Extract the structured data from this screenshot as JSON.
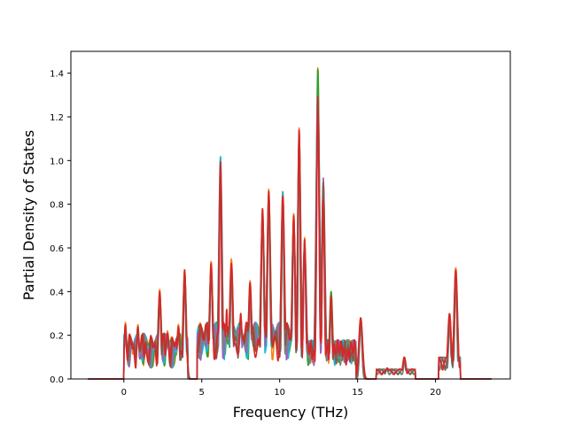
{
  "chart_data": {
    "type": "line",
    "title": "",
    "xlabel": "Frequency (THz)",
    "ylabel": "Partial Density of States",
    "xlim": [
      -3.4,
      24.8
    ],
    "ylim": [
      0.0,
      1.5
    ],
    "xticks": [
      0,
      5,
      10,
      15,
      20
    ],
    "yticks": [
      0.0,
      0.2,
      0.4,
      0.6,
      0.8,
      1.0,
      1.2,
      1.4
    ],
    "grid": false,
    "legend": "none",
    "x_range_plotted": [
      -2.3,
      23.6
    ],
    "series": [
      {
        "color": "#ff7f0e",
        "variant": 0,
        "peaks": [
          [
            0.1,
            0.26
          ],
          [
            0.5,
            0.18
          ],
          [
            0.9,
            0.25
          ],
          [
            1.4,
            0.18
          ],
          [
            2.3,
            0.41
          ],
          [
            2.8,
            0.22
          ],
          [
            3.5,
            0.25
          ],
          [
            3.9,
            0.5
          ],
          [
            5.6,
            0.54
          ],
          [
            6.2,
            1.02
          ],
          [
            6.6,
            0.3
          ],
          [
            6.9,
            0.55
          ],
          [
            7.5,
            0.3
          ],
          [
            8.1,
            0.45
          ],
          [
            8.9,
            0.78
          ],
          [
            9.3,
            0.87
          ],
          [
            10.2,
            0.86
          ],
          [
            10.9,
            0.76
          ],
          [
            11.25,
            1.15
          ],
          [
            11.6,
            0.65
          ],
          [
            12.45,
            1.43
          ],
          [
            12.8,
            0.92
          ],
          [
            13.3,
            0.4
          ],
          [
            15.2,
            0.28
          ],
          [
            16.9,
            0.05
          ],
          [
            18,
            0.1
          ],
          [
            20.9,
            0.3
          ],
          [
            21.3,
            0.51
          ]
        ]
      },
      {
        "color": "#2ca02c",
        "variant": 1,
        "peaks": [
          [
            0.1,
            0.24
          ],
          [
            0.5,
            0.16
          ],
          [
            0.9,
            0.24
          ],
          [
            1.4,
            0.16
          ],
          [
            2.3,
            0.38
          ],
          [
            2.8,
            0.2
          ],
          [
            3.5,
            0.22
          ],
          [
            3.9,
            0.48
          ],
          [
            5.6,
            0.5
          ],
          [
            6.2,
            0.98
          ],
          [
            6.6,
            0.2
          ],
          [
            6.9,
            0.52
          ],
          [
            7.5,
            0.22
          ],
          [
            8.1,
            0.42
          ],
          [
            8.9,
            0.74
          ],
          [
            9.3,
            0.84
          ],
          [
            10.2,
            0.8
          ],
          [
            10.9,
            0.72
          ],
          [
            11.25,
            1.12
          ],
          [
            11.6,
            0.6
          ],
          [
            12.45,
            1.42
          ],
          [
            12.8,
            0.85
          ],
          [
            13.3,
            0.4
          ],
          [
            15.2,
            0.27
          ],
          [
            16.9,
            0.04
          ],
          [
            18,
            0.09
          ],
          [
            20.9,
            0.28
          ],
          [
            21.3,
            0.49
          ]
        ]
      },
      {
        "color": "#17becf",
        "variant": 2,
        "peaks": [
          [
            0.1,
            0.22
          ],
          [
            0.5,
            0.15
          ],
          [
            0.9,
            0.22
          ],
          [
            1.4,
            0.15
          ],
          [
            2.3,
            0.36
          ],
          [
            2.8,
            0.19
          ],
          [
            3.5,
            0.22
          ],
          [
            3.9,
            0.47
          ],
          [
            5.6,
            0.5
          ],
          [
            6.2,
            1.02
          ],
          [
            6.6,
            0.25
          ],
          [
            6.9,
            0.5
          ],
          [
            7.5,
            0.25
          ],
          [
            8.1,
            0.42
          ],
          [
            8.9,
            0.76
          ],
          [
            9.3,
            0.82
          ],
          [
            10.2,
            0.86
          ],
          [
            10.9,
            0.74
          ],
          [
            11.25,
            1.12
          ],
          [
            11.6,
            0.6
          ],
          [
            12.45,
            1.3
          ],
          [
            12.8,
            0.88
          ],
          [
            13.3,
            0.36
          ],
          [
            15.2,
            0.26
          ],
          [
            16.9,
            0.05
          ],
          [
            18,
            0.09
          ],
          [
            20.9,
            0.27
          ],
          [
            21.3,
            0.48
          ]
        ]
      },
      {
        "color": "#9467bd",
        "variant": 3,
        "peaks": [
          [
            0.1,
            0.2
          ],
          [
            0.5,
            0.15
          ],
          [
            0.9,
            0.21
          ],
          [
            1.4,
            0.15
          ],
          [
            2.3,
            0.35
          ],
          [
            2.8,
            0.19
          ],
          [
            3.5,
            0.21
          ],
          [
            3.9,
            0.45
          ],
          [
            5.6,
            0.48
          ],
          [
            6.2,
            0.96
          ],
          [
            6.6,
            0.28
          ],
          [
            6.9,
            0.5
          ],
          [
            7.5,
            0.26
          ],
          [
            8.1,
            0.4
          ],
          [
            8.9,
            0.72
          ],
          [
            9.3,
            0.8
          ],
          [
            10.2,
            0.78
          ],
          [
            10.9,
            0.72
          ],
          [
            11.25,
            1.1
          ],
          [
            11.6,
            0.6
          ],
          [
            12.45,
            1.2
          ],
          [
            12.8,
            0.92
          ],
          [
            13.3,
            0.34
          ],
          [
            15.2,
            0.25
          ],
          [
            16.9,
            0.04
          ],
          [
            18,
            0.08
          ],
          [
            20.9,
            0.26
          ],
          [
            21.3,
            0.46
          ]
        ]
      },
      {
        "color": "#7f7f7f",
        "variant": 4,
        "peaks": [
          [
            0.1,
            0.18
          ],
          [
            0.5,
            0.13
          ],
          [
            0.9,
            0.19
          ],
          [
            1.4,
            0.13
          ],
          [
            2.3,
            0.33
          ],
          [
            2.8,
            0.18
          ],
          [
            3.5,
            0.2
          ],
          [
            3.9,
            0.43
          ],
          [
            5.6,
            0.46
          ],
          [
            6.2,
            0.94
          ],
          [
            6.6,
            0.26
          ],
          [
            6.9,
            0.48
          ],
          [
            7.5,
            0.26
          ],
          [
            8.1,
            0.38
          ],
          [
            8.9,
            0.7
          ],
          [
            9.3,
            0.78
          ],
          [
            10.2,
            0.76
          ],
          [
            10.9,
            0.7
          ],
          [
            11.25,
            1.08
          ],
          [
            11.6,
            0.58
          ],
          [
            12.45,
            1.18
          ],
          [
            12.8,
            0.88
          ],
          [
            13.3,
            0.33
          ],
          [
            15.2,
            0.24
          ],
          [
            16.9,
            0.04
          ],
          [
            18,
            0.08
          ],
          [
            20.9,
            0.25
          ],
          [
            21.3,
            0.45
          ]
        ]
      },
      {
        "color": "#8c564b",
        "variant": 5,
        "peaks": [
          [
            0.1,
            0.2
          ],
          [
            0.5,
            0.15
          ],
          [
            0.9,
            0.2
          ],
          [
            1.4,
            0.15
          ],
          [
            2.3,
            0.36
          ],
          [
            2.8,
            0.2
          ],
          [
            3.5,
            0.22
          ],
          [
            3.9,
            0.46
          ],
          [
            5.6,
            0.49
          ],
          [
            6.2,
            0.98
          ],
          [
            6.6,
            0.27
          ],
          [
            6.9,
            0.5
          ],
          [
            7.5,
            0.27
          ],
          [
            8.1,
            0.4
          ],
          [
            8.9,
            0.74
          ],
          [
            9.3,
            0.82
          ],
          [
            10.2,
            0.8
          ],
          [
            10.9,
            0.74
          ],
          [
            11.25,
            1.14
          ],
          [
            11.6,
            0.62
          ],
          [
            12.45,
            1.25
          ],
          [
            12.8,
            0.9
          ],
          [
            13.3,
            0.35
          ],
          [
            15.2,
            0.26
          ],
          [
            16.9,
            0.05
          ],
          [
            18,
            0.09
          ],
          [
            20.9,
            0.27
          ],
          [
            21.3,
            0.47
          ]
        ]
      },
      {
        "color": "#d62728",
        "variant": 6,
        "peaks": [
          [
            0.1,
            0.25
          ],
          [
            0.5,
            0.17
          ],
          [
            0.9,
            0.24
          ],
          [
            1.4,
            0.17
          ],
          [
            2.3,
            0.4
          ],
          [
            2.8,
            0.21
          ],
          [
            3.5,
            0.24
          ],
          [
            3.9,
            0.5
          ],
          [
            5.6,
            0.53
          ],
          [
            6.2,
            1.0
          ],
          [
            6.6,
            0.32
          ],
          [
            6.9,
            0.53
          ],
          [
            7.5,
            0.3
          ],
          [
            8.1,
            0.44
          ],
          [
            8.9,
            0.78
          ],
          [
            9.3,
            0.86
          ],
          [
            10.2,
            0.84
          ],
          [
            10.9,
            0.75
          ],
          [
            11.25,
            1.14
          ],
          [
            11.6,
            0.64
          ],
          [
            12.45,
            1.3
          ],
          [
            12.8,
            0.82
          ],
          [
            13.3,
            0.38
          ],
          [
            15.2,
            0.28
          ],
          [
            16.9,
            0.05
          ],
          [
            18,
            0.1
          ],
          [
            20.9,
            0.3
          ],
          [
            21.3,
            0.5
          ]
        ]
      }
    ]
  }
}
